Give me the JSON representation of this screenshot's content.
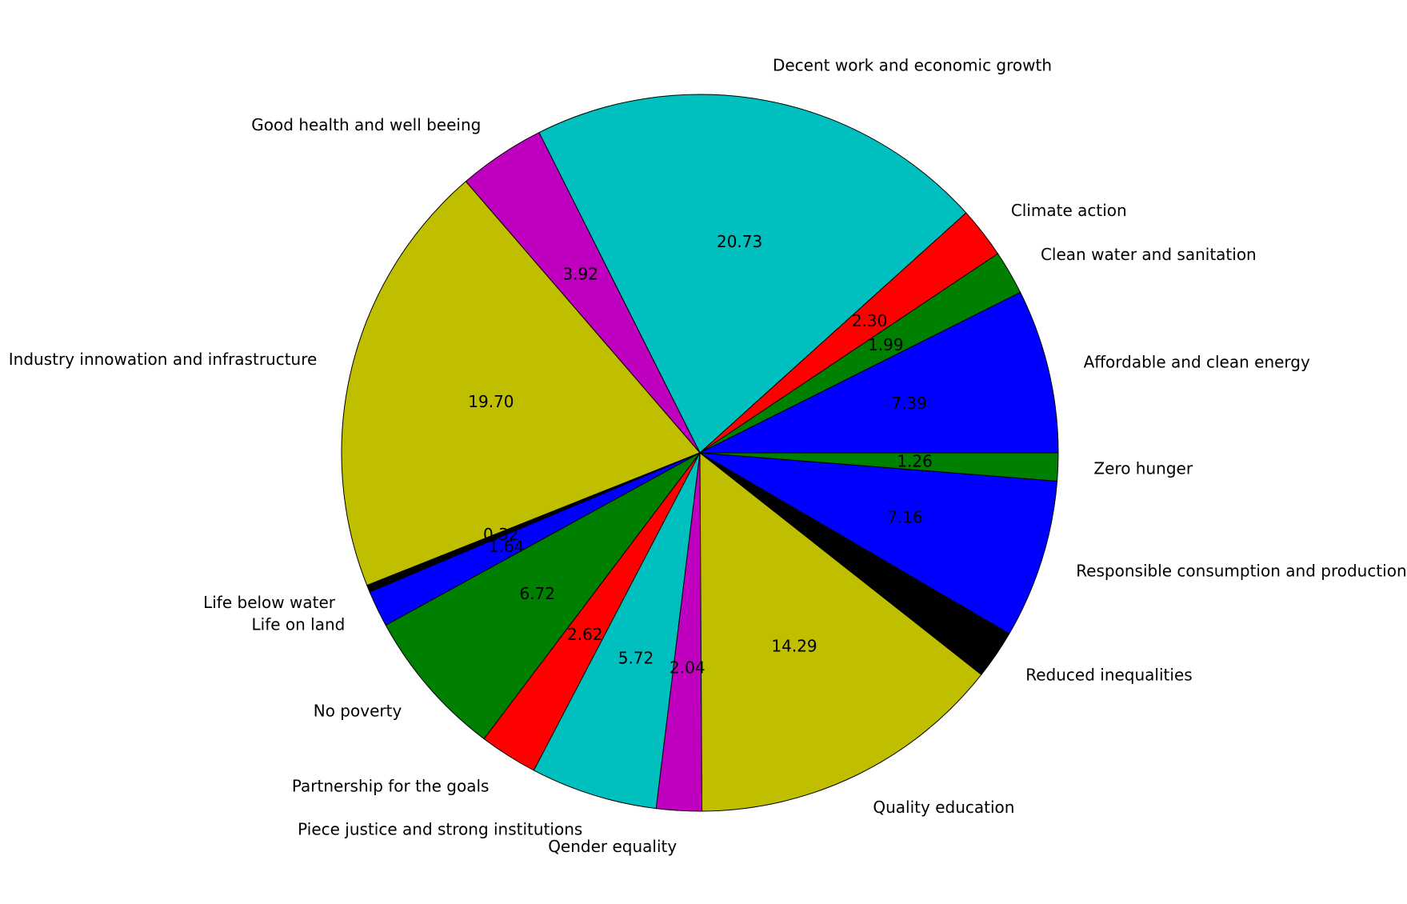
{
  "chart_data": {
    "type": "pie",
    "start_angle_deg": 0,
    "direction": "counterclockwise",
    "slices": [
      {
        "label": "Affordable and clean energy",
        "value": 7.39,
        "display": "7.39",
        "color": "#0000ff"
      },
      {
        "label": "Clean water and sanitation",
        "value": 1.99,
        "display": "1.99",
        "color": "#008000"
      },
      {
        "label": "Climate action",
        "value": 2.3,
        "display": "2.30",
        "color": "#ff0000"
      },
      {
        "label": "Decent work and economic growth",
        "value": 20.73,
        "display": "20.73",
        "color": "#00bfbf"
      },
      {
        "label": "Good health and well beeing",
        "value": 3.92,
        "display": "3.92",
        "color": "#bf00bf"
      },
      {
        "label": "Industry innowation and infrastructure",
        "value": 19.7,
        "display": "19.70",
        "color": "#bfbf00"
      },
      {
        "label": "Life below water",
        "value": 0.32,
        "display": "0.32",
        "color": "#000000"
      },
      {
        "label": "Life on land",
        "value": 1.64,
        "display": "1.64",
        "color": "#0000ff"
      },
      {
        "label": "No poverty",
        "value": 6.72,
        "display": "6.72",
        "color": "#008000"
      },
      {
        "label": "Partnership for the goals",
        "value": 2.62,
        "display": "2.62",
        "color": "#ff0000"
      },
      {
        "label": "Piece justice and strong institutions",
        "value": 5.72,
        "display": "5.72",
        "color": "#00bfbf"
      },
      {
        "label": "Qender equality",
        "value": 2.04,
        "display": "2.04",
        "color": "#bf00bf"
      },
      {
        "label": "Quality education",
        "value": 14.29,
        "display": "14.29",
        "color": "#bfbf00"
      },
      {
        "label": "Reduced inequalities",
        "value": 2.2,
        "display": "",
        "color": "#000000"
      },
      {
        "label": "Responsible consumption and production",
        "value": 7.16,
        "display": "7.16",
        "color": "#0000ff"
      },
      {
        "label": "Zero hunger",
        "value": 1.26,
        "display": "1.26",
        "color": "#008000"
      }
    ]
  }
}
